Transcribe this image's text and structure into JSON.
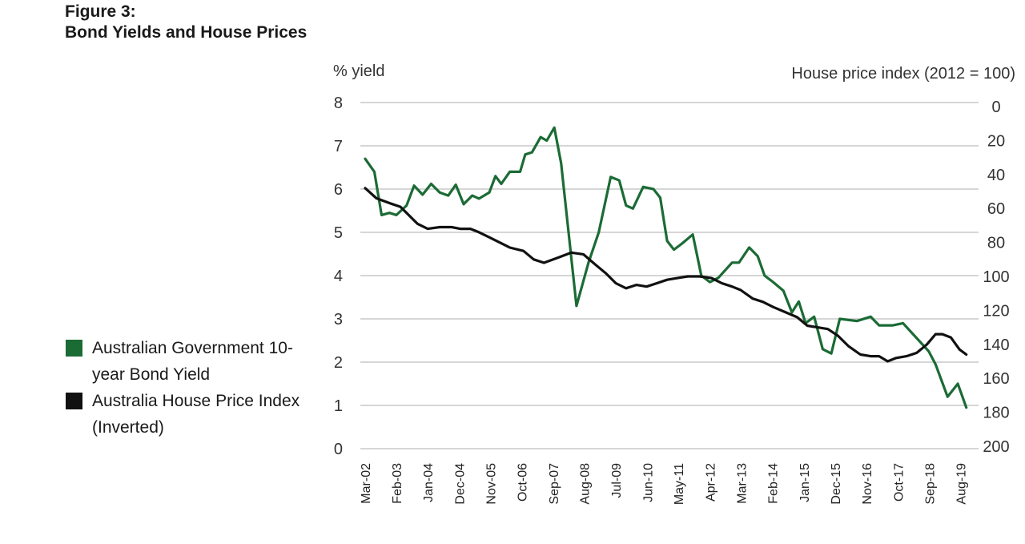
{
  "figure_label": "Figure 3:",
  "figure_title": "Bond Yields and House Prices",
  "legend": [
    {
      "label": "Australian Government 10-year Bond Yield",
      "color": "#1b6b35"
    },
    {
      "label": "Australia House Price Index (Inverted)",
      "color": "#111111"
    }
  ],
  "chart_data": {
    "type": "line",
    "title": "Bond Yields and House Prices",
    "y_left_label": "% yield",
    "y_right_label": "House price index (2012 = 100)",
    "y_left_lim": [
      0,
      8
    ],
    "y_left_ticks": [
      "0",
      "1",
      "2",
      "3",
      "4",
      "5",
      "6",
      "7",
      "8"
    ],
    "y_right_lim": [
      200,
      0
    ],
    "y_right_inverted": true,
    "y_right_ticks": [
      "0",
      "20",
      "40",
      "60",
      "80",
      "100",
      "120",
      "140",
      "160",
      "180",
      "200"
    ],
    "x_range": [
      2002.17,
      2019.92
    ],
    "x_ticks": [
      {
        "label": "Mar-02",
        "x": 2002.17
      },
      {
        "label": "Feb-03",
        "x": 2003.08
      },
      {
        "label": "Jan-04",
        "x": 2004.0
      },
      {
        "label": "Dec-04",
        "x": 2004.92
      },
      {
        "label": "Nov-05",
        "x": 2005.83
      },
      {
        "label": "Oct-06",
        "x": 2006.75
      },
      {
        "label": "Sep-07",
        "x": 2007.67
      },
      {
        "label": "Aug-08",
        "x": 2008.58
      },
      {
        "label": "Jul-09",
        "x": 2009.5
      },
      {
        "label": "Jun-10",
        "x": 2010.42
      },
      {
        "label": "May-11",
        "x": 2011.33
      },
      {
        "label": "Apr-12",
        "x": 2012.25
      },
      {
        "label": "Mar-13",
        "x": 2013.17
      },
      {
        "label": "Feb-14",
        "x": 2014.08
      },
      {
        "label": "Jan-15",
        "x": 2015.0
      },
      {
        "label": "Dec-15",
        "x": 2015.92
      },
      {
        "label": "Nov-16",
        "x": 2016.83
      },
      {
        "label": "Oct-17",
        "x": 2017.75
      },
      {
        "label": "Sep-18",
        "x": 2018.67
      },
      {
        "label": "Aug-19",
        "x": 2019.58
      }
    ],
    "grid": "horizontal",
    "legend_position": "left",
    "series": [
      {
        "name": "Australian Government 10-year Bond Yield",
        "axis": "left",
        "color": "#1b6b35",
        "points": [
          [
            2002.17,
            6.7
          ],
          [
            2002.44,
            6.4
          ],
          [
            2002.65,
            5.4
          ],
          [
            2002.88,
            5.45
          ],
          [
            2003.08,
            5.4
          ],
          [
            2003.38,
            5.62
          ],
          [
            2003.6,
            6.08
          ],
          [
            2003.85,
            5.87
          ],
          [
            2004.1,
            6.12
          ],
          [
            2004.35,
            5.92
          ],
          [
            2004.6,
            5.85
          ],
          [
            2004.82,
            6.1
          ],
          [
            2005.05,
            5.65
          ],
          [
            2005.3,
            5.85
          ],
          [
            2005.5,
            5.78
          ],
          [
            2005.8,
            5.92
          ],
          [
            2005.98,
            6.3
          ],
          [
            2006.15,
            6.12
          ],
          [
            2006.4,
            6.4
          ],
          [
            2006.7,
            6.4
          ],
          [
            2006.85,
            6.8
          ],
          [
            2007.05,
            6.85
          ],
          [
            2007.3,
            7.2
          ],
          [
            2007.48,
            7.12
          ],
          [
            2007.7,
            7.42
          ],
          [
            2007.9,
            6.6
          ],
          [
            2008.35,
            3.3
          ],
          [
            2008.7,
            4.3
          ],
          [
            2009.0,
            5.0
          ],
          [
            2009.35,
            6.28
          ],
          [
            2009.6,
            6.2
          ],
          [
            2009.8,
            5.62
          ],
          [
            2010.0,
            5.55
          ],
          [
            2010.3,
            6.05
          ],
          [
            2010.6,
            6.0
          ],
          [
            2010.8,
            5.8
          ],
          [
            2011.0,
            4.8
          ],
          [
            2011.2,
            4.6
          ],
          [
            2011.45,
            4.75
          ],
          [
            2011.75,
            4.95
          ],
          [
            2012.0,
            4.0
          ],
          [
            2012.25,
            3.85
          ],
          [
            2012.5,
            3.95
          ],
          [
            2012.9,
            4.3
          ],
          [
            2013.1,
            4.3
          ],
          [
            2013.4,
            4.65
          ],
          [
            2013.65,
            4.45
          ],
          [
            2013.85,
            4.0
          ],
          [
            2014.1,
            3.85
          ],
          [
            2014.4,
            3.65
          ],
          [
            2014.65,
            3.15
          ],
          [
            2014.85,
            3.4
          ],
          [
            2015.05,
            2.9
          ],
          [
            2015.3,
            3.05
          ],
          [
            2015.55,
            2.3
          ],
          [
            2015.8,
            2.2
          ],
          [
            2016.05,
            3.0
          ],
          [
            2016.55,
            2.95
          ],
          [
            2016.95,
            3.05
          ],
          [
            2017.2,
            2.85
          ],
          [
            2017.6,
            2.85
          ],
          [
            2017.9,
            2.9
          ],
          [
            2018.65,
            2.25
          ],
          [
            2018.85,
            1.95
          ],
          [
            2019.2,
            1.2
          ],
          [
            2019.5,
            1.5
          ],
          [
            2019.75,
            0.95
          ]
        ]
      },
      {
        "name": "Australia House Price Index (Inverted)",
        "axis": "right",
        "color": "#111111",
        "points": [
          [
            2002.17,
            48
          ],
          [
            2002.5,
            54
          ],
          [
            2002.9,
            57
          ],
          [
            2003.2,
            59
          ],
          [
            2003.45,
            64
          ],
          [
            2003.7,
            69
          ],
          [
            2004.0,
            72
          ],
          [
            2004.35,
            71
          ],
          [
            2004.7,
            71
          ],
          [
            2004.95,
            72
          ],
          [
            2005.25,
            72
          ],
          [
            2005.5,
            74
          ],
          [
            2005.8,
            77
          ],
          [
            2006.1,
            80
          ],
          [
            2006.4,
            83
          ],
          [
            2006.8,
            85
          ],
          [
            2007.1,
            90
          ],
          [
            2007.4,
            92
          ],
          [
            2007.8,
            89
          ],
          [
            2008.2,
            86
          ],
          [
            2008.55,
            87
          ],
          [
            2008.9,
            93
          ],
          [
            2009.2,
            98
          ],
          [
            2009.5,
            104
          ],
          [
            2009.8,
            107
          ],
          [
            2010.1,
            105
          ],
          [
            2010.4,
            106
          ],
          [
            2010.7,
            104
          ],
          [
            2011.0,
            102
          ],
          [
            2011.3,
            101
          ],
          [
            2011.6,
            100
          ],
          [
            2011.95,
            100
          ],
          [
            2012.3,
            101
          ],
          [
            2012.6,
            104
          ],
          [
            2012.9,
            106
          ],
          [
            2013.15,
            108
          ],
          [
            2013.5,
            113
          ],
          [
            2013.8,
            115
          ],
          [
            2014.1,
            118
          ],
          [
            2014.45,
            121
          ],
          [
            2014.8,
            124
          ],
          [
            2015.1,
            129
          ],
          [
            2015.4,
            130
          ],
          [
            2015.7,
            131
          ],
          [
            2016.0,
            135
          ],
          [
            2016.3,
            141
          ],
          [
            2016.65,
            146
          ],
          [
            2016.95,
            147
          ],
          [
            2017.2,
            147
          ],
          [
            2017.45,
            150
          ],
          [
            2017.7,
            148
          ],
          [
            2018.0,
            147
          ],
          [
            2018.3,
            145
          ],
          [
            2018.6,
            140
          ],
          [
            2018.85,
            134
          ],
          [
            2019.05,
            134
          ],
          [
            2019.3,
            136
          ],
          [
            2019.55,
            143
          ],
          [
            2019.75,
            146
          ]
        ]
      }
    ]
  }
}
